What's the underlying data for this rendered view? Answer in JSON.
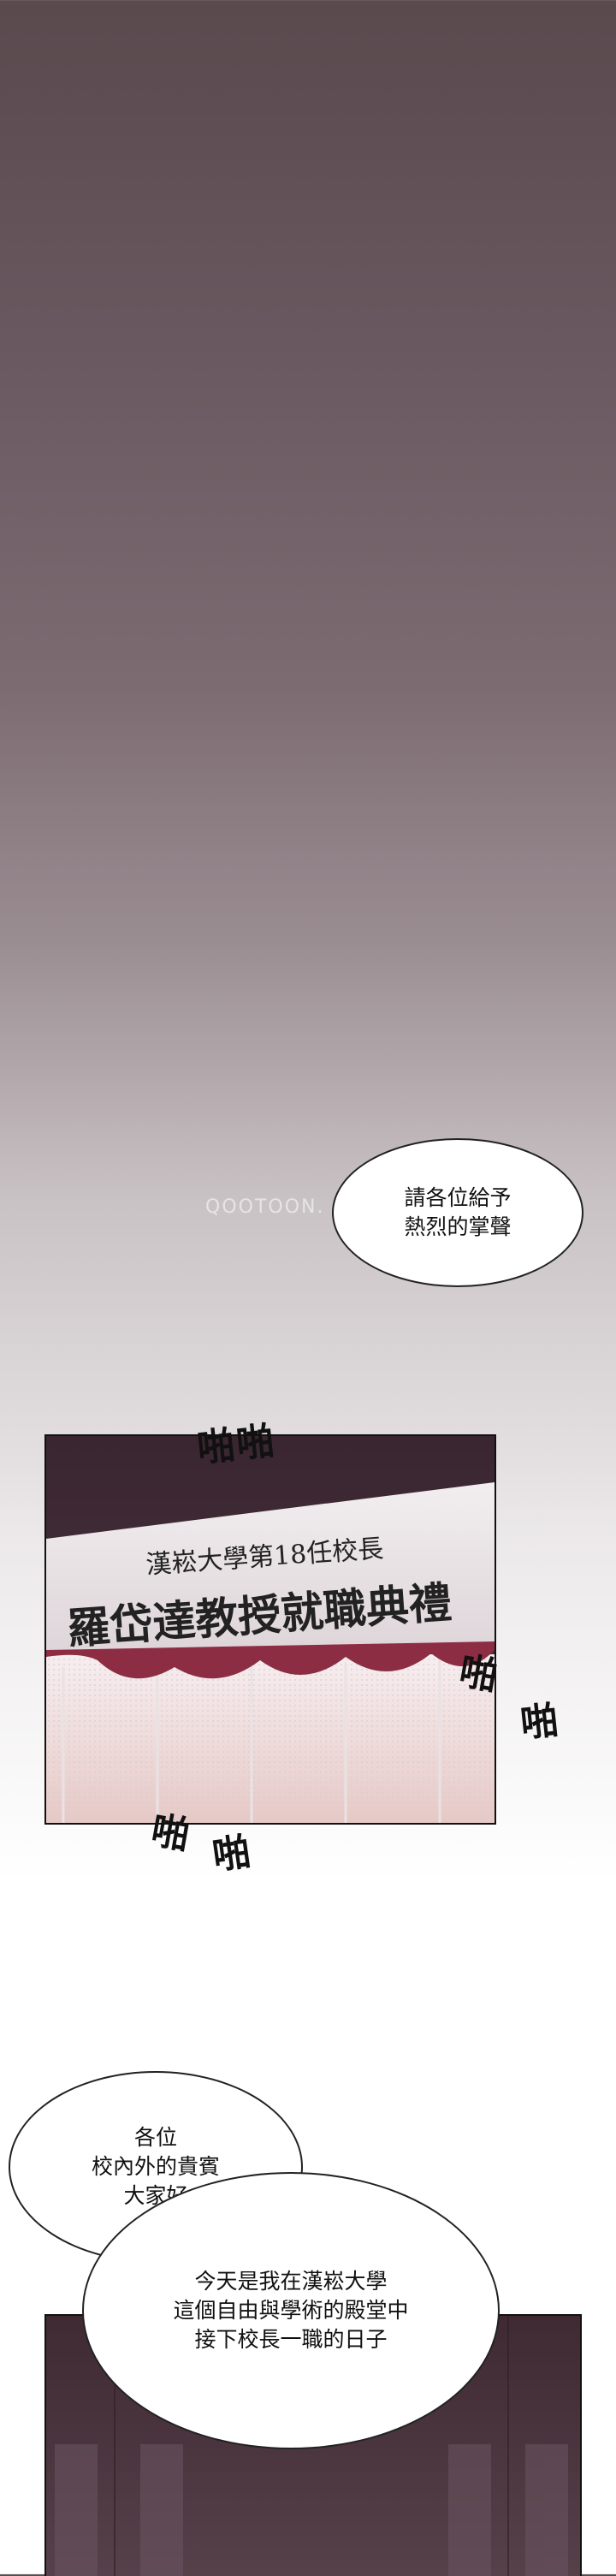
{
  "bubble1": {
    "line1": "請各位給予",
    "line2": "熱烈的掌聲"
  },
  "watermark": "QOOTOON.",
  "panel1": {
    "banner_line1": "漢崧大學第18任校長",
    "banner_line2": "羅岱達教授就職典禮"
  },
  "sfx": {
    "clap": "啪",
    "clap_pair": "啪啪"
  },
  "bubble2": {
    "line1": "各位",
    "line2": "校內外的貴賓",
    "line3": "大家好"
  },
  "bubble3": {
    "line1": "今天是我在漢崧大學",
    "line2": "這個自由與學術的殿堂中",
    "line3": "接下校長一職的日子"
  }
}
